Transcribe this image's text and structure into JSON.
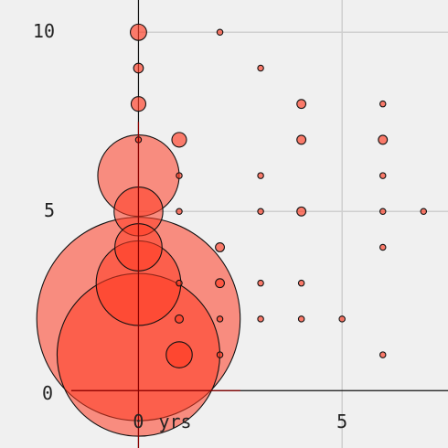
{
  "chart_data": {
    "type": "scatter",
    "title": "",
    "xlabel": "yrs",
    "ylabel": "",
    "x_ticks": [
      "0",
      "5"
    ],
    "y_ticks": [
      "0",
      "5",
      "10"
    ],
    "xlim": [
      -3.4,
      7.6
    ],
    "ylim": [
      -1.6,
      10.9
    ],
    "grid": true,
    "fill_color": "#ff3b22",
    "accent_color": "#8b0000",
    "points": [
      {
        "x": 0,
        "y": 10,
        "r": 1.0
      },
      {
        "x": 0,
        "y": 9,
        "r": 0.6
      },
      {
        "x": 0,
        "y": 8,
        "r": 0.9
      },
      {
        "x": 0,
        "y": 7,
        "r": 0.15
      },
      {
        "x": 0,
        "y": 6,
        "r": 5.0
      },
      {
        "x": 0,
        "y": 5,
        "r": 3.0
      },
      {
        "x": 0,
        "y": 4,
        "r": 2.9
      },
      {
        "x": 0,
        "y": 3,
        "r": 5.2
      },
      {
        "x": 0,
        "y": 2,
        "r": 12.5
      },
      {
        "x": 0,
        "y": 1,
        "r": 10.0
      },
      {
        "x": 1,
        "y": 7,
        "r": 0.9
      },
      {
        "x": 1,
        "y": 6,
        "r": 0.15
      },
      {
        "x": 1,
        "y": 5,
        "r": 0.15
      },
      {
        "x": 1,
        "y": 3,
        "r": 0.15
      },
      {
        "x": 1,
        "y": 2,
        "r": 0.5
      },
      {
        "x": 1,
        "y": 1,
        "r": 1.6
      },
      {
        "x": 2,
        "y": 10,
        "r": 0.15
      },
      {
        "x": 2,
        "y": 4,
        "r": 0.55
      },
      {
        "x": 2,
        "y": 3,
        "r": 0.55
      },
      {
        "x": 2,
        "y": 2,
        "r": 0.15
      },
      {
        "x": 2,
        "y": 1,
        "r": 0.15
      },
      {
        "x": 3,
        "y": 9,
        "r": 0.15
      },
      {
        "x": 3,
        "y": 6,
        "r": 0.15
      },
      {
        "x": 3,
        "y": 5,
        "r": 0.15
      },
      {
        "x": 3,
        "y": 3,
        "r": 0.15
      },
      {
        "x": 3,
        "y": 2,
        "r": 0.15
      },
      {
        "x": 4,
        "y": 8,
        "r": 0.55
      },
      {
        "x": 4,
        "y": 7,
        "r": 0.55
      },
      {
        "x": 4,
        "y": 5,
        "r": 0.55
      },
      {
        "x": 4,
        "y": 3,
        "r": 0.15
      },
      {
        "x": 4,
        "y": 2,
        "r": 0.15
      },
      {
        "x": 5,
        "y": 2,
        "r": 0.15
      },
      {
        "x": 6,
        "y": 11,
        "r": 0.15
      },
      {
        "x": 6,
        "y": 8,
        "r": 0.15
      },
      {
        "x": 6,
        "y": 7,
        "r": 0.55
      },
      {
        "x": 6,
        "y": 6,
        "r": 0.15
      },
      {
        "x": 6,
        "y": 5,
        "r": 0.15
      },
      {
        "x": 6,
        "y": 4,
        "r": 0.15
      },
      {
        "x": 6,
        "y": 1,
        "r": 0.15
      },
      {
        "x": 7,
        "y": 5,
        "r": 0.15
      }
    ]
  }
}
